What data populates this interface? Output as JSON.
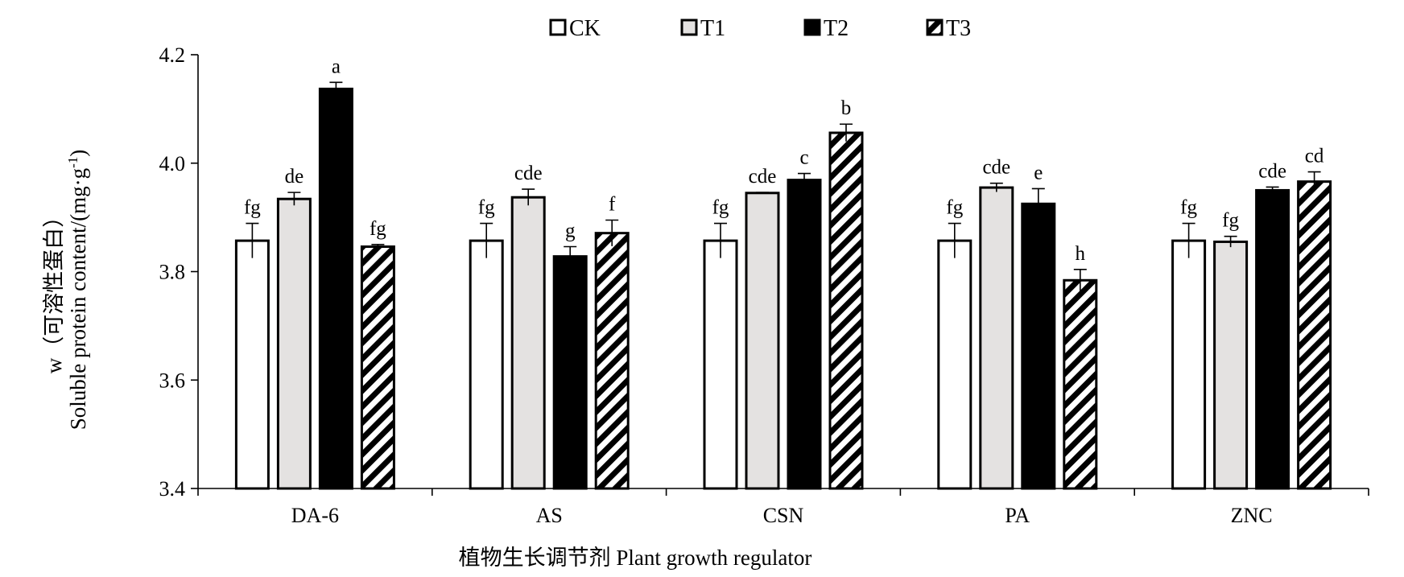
{
  "chart_data": {
    "type": "bar",
    "title": "",
    "xlabel": "植物生长调节剂 Plant growth regulator",
    "ylabel_line1": "w（可溶性蛋白）",
    "ylabel_line2": "Soluble protein content/(mg·g",
    "ylabel_sup": "-1",
    "ylabel_end": ")",
    "ylim": [
      3.4,
      4.2
    ],
    "yticks": [
      "3.4",
      "3.6",
      "3.8",
      "4.0",
      "4.2"
    ],
    "ytick_values": [
      3.4,
      3.6,
      3.8,
      4.0,
      4.2
    ],
    "grid": false,
    "legend_position": "top",
    "categories": [
      "DA-6",
      "AS",
      "CSN",
      "PA",
      "ZNC"
    ],
    "series": [
      {
        "name": "CK",
        "fill": "#ffffff",
        "pattern": "none",
        "values": [
          3.857,
          3.857,
          3.857,
          3.857,
          3.857
        ],
        "errors": [
          0.032,
          0.032,
          0.032,
          0.032,
          0.032
        ],
        "labels": [
          "fg",
          "fg",
          "fg",
          "fg",
          "fg"
        ]
      },
      {
        "name": "T1",
        "fill": "#e4e2e1",
        "pattern": "none",
        "values": [
          3.934,
          3.937,
          3.945,
          3.955,
          3.855
        ],
        "errors": [
          0.012,
          0.015,
          0.001,
          0.008,
          0.01
        ],
        "labels": [
          "de",
          "cde",
          "cde",
          "cde",
          "fg"
        ]
      },
      {
        "name": "T2",
        "fill": "#000000",
        "pattern": "none",
        "values": [
          4.137,
          3.828,
          3.969,
          3.925,
          3.95
        ],
        "errors": [
          0.012,
          0.018,
          0.012,
          0.028,
          0.006
        ],
        "labels": [
          "a",
          "g",
          "c",
          "e",
          "cde"
        ]
      },
      {
        "name": "T3",
        "fill": "#ffffff",
        "pattern": "diagonal-stripes",
        "values": [
          3.846,
          3.871,
          4.056,
          3.784,
          3.966
        ],
        "errors": [
          0.004,
          0.024,
          0.016,
          0.02,
          0.018
        ],
        "labels": [
          "fg",
          "f",
          "b",
          "h",
          "cd"
        ]
      }
    ]
  }
}
